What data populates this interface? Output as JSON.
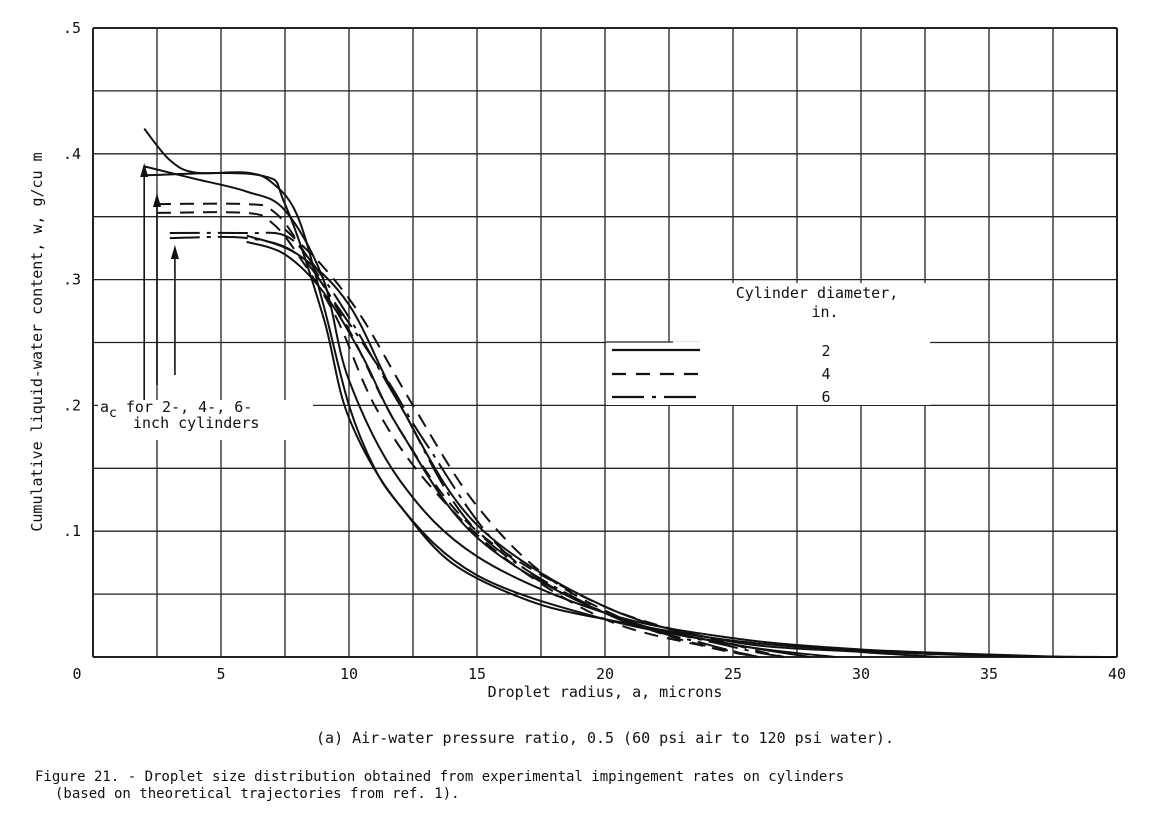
{
  "chart_data": {
    "type": "line",
    "xlabel": "Droplet radius, a, microns",
    "ylabel": "Cumulative liquid-water content, w, g/cu m",
    "xlim": [
      0,
      40
    ],
    "ylim": [
      0,
      0.5
    ],
    "x_ticks": [
      "0",
      "5",
      "10",
      "15",
      "20",
      "25",
      "30",
      "35",
      "40"
    ],
    "y_ticks": [
      ".1",
      ".2",
      ".3",
      ".4",
      ".5"
    ],
    "grid": true,
    "legend": {
      "title_line1": "Cylinder diameter,",
      "title_line2": "in.",
      "placement": "center-right",
      "entries": [
        {
          "label": "2",
          "style": "solid"
        },
        {
          "label": "4",
          "style": "dashed"
        },
        {
          "label": "6",
          "style": "dash-dot"
        }
      ]
    },
    "annotation": {
      "line1_prefix": "a",
      "line1_sub": "c",
      "line1_rest": " for 2-, 4-, 6-",
      "line2": "inch cylinders",
      "arrow_x": [
        2,
        2.5,
        3.2
      ]
    },
    "series": [
      {
        "style": "solid",
        "points": [
          [
            2,
            0.42
          ],
          [
            3,
            0.395
          ],
          [
            4,
            0.385
          ],
          [
            6,
            0.385
          ],
          [
            7,
            0.377
          ],
          [
            8,
            0.35
          ],
          [
            9,
            0.28
          ],
          [
            10,
            0.2
          ],
          [
            11,
            0.15
          ],
          [
            12,
            0.12
          ],
          [
            14,
            0.075
          ],
          [
            17,
            0.045
          ],
          [
            20,
            0.03
          ],
          [
            25,
            0.013
          ],
          [
            30,
            0.005
          ],
          [
            35,
            0.001
          ],
          [
            40,
            0
          ]
        ]
      },
      {
        "style": "solid",
        "points": [
          [
            2,
            0.39
          ],
          [
            4,
            0.38
          ],
          [
            6,
            0.37
          ],
          [
            7.5,
            0.355
          ],
          [
            9,
            0.3
          ],
          [
            10,
            0.22
          ],
          [
            12,
            0.14
          ],
          [
            15,
            0.08
          ],
          [
            20,
            0.035
          ],
          [
            25,
            0.015
          ],
          [
            30,
            0.006
          ],
          [
            35,
            0.002
          ],
          [
            38,
            0
          ]
        ]
      },
      {
        "style": "solid",
        "points": [
          [
            2,
            0.383
          ],
          [
            6.5,
            0.383
          ],
          [
            7.5,
            0.36
          ],
          [
            9,
            0.27
          ],
          [
            10,
            0.19
          ],
          [
            12,
            0.12
          ],
          [
            15,
            0.065
          ],
          [
            20,
            0.03
          ],
          [
            25,
            0.01
          ],
          [
            28,
            0
          ]
        ]
      },
      {
        "style": "solid",
        "points": [
          [
            6,
            0.335
          ],
          [
            8,
            0.32
          ],
          [
            10,
            0.28
          ],
          [
            12,
            0.2
          ],
          [
            15,
            0.105
          ],
          [
            20,
            0.04
          ],
          [
            25,
            0.012
          ],
          [
            30,
            0.004
          ],
          [
            33,
            0
          ]
        ]
      },
      {
        "style": "solid",
        "points": [
          [
            6,
            0.33
          ],
          [
            7.5,
            0.32
          ],
          [
            9,
            0.29
          ],
          [
            10.5,
            0.24
          ],
          [
            12,
            0.18
          ],
          [
            15,
            0.095
          ],
          [
            20,
            0.035
          ],
          [
            25,
            0.01
          ],
          [
            29,
            0
          ]
        ]
      },
      {
        "style": "dashed",
        "points": [
          [
            2.5,
            0.36
          ],
          [
            6,
            0.36
          ],
          [
            7,
            0.355
          ],
          [
            8,
            0.33
          ],
          [
            10,
            0.26
          ],
          [
            12,
            0.18
          ],
          [
            15,
            0.1
          ],
          [
            20,
            0.04
          ],
          [
            25,
            0.01
          ],
          [
            27,
            0
          ]
        ]
      },
      {
        "style": "dashed",
        "points": [
          [
            2.5,
            0.353
          ],
          [
            6,
            0.353
          ],
          [
            7,
            0.345
          ],
          [
            8,
            0.32
          ],
          [
            9.5,
            0.27
          ],
          [
            11,
            0.2
          ],
          [
            13,
            0.14
          ],
          [
            16,
            0.08
          ],
          [
            20,
            0.03
          ],
          [
            24,
            0.008
          ],
          [
            26,
            0
          ]
        ]
      },
      {
        "style": "dashed",
        "points": [
          [
            7.5,
            0.34
          ],
          [
            9,
            0.31
          ],
          [
            10.5,
            0.27
          ],
          [
            12.5,
            0.2
          ],
          [
            15,
            0.12
          ],
          [
            18,
            0.06
          ],
          [
            22,
            0.02
          ],
          [
            26,
            0
          ]
        ]
      },
      {
        "style": "dash-dot",
        "points": [
          [
            3,
            0.337
          ],
          [
            6,
            0.337
          ],
          [
            7.5,
            0.335
          ],
          [
            8.5,
            0.315
          ],
          [
            10,
            0.27
          ],
          [
            12,
            0.2
          ],
          [
            15,
            0.1
          ],
          [
            20,
            0.035
          ],
          [
            24,
            0.01
          ],
          [
            26,
            0
          ]
        ]
      },
      {
        "style": "dash-dot",
        "points": [
          [
            3,
            0.333
          ],
          [
            6,
            0.333
          ],
          [
            8,
            0.32
          ],
          [
            9.5,
            0.28
          ],
          [
            11.5,
            0.22
          ],
          [
            13,
            0.17
          ],
          [
            16,
            0.085
          ],
          [
            20,
            0.035
          ],
          [
            25,
            0.008
          ],
          [
            27,
            0
          ]
        ]
      }
    ]
  },
  "caption": {
    "subcaption": "(a) Air-water pressure ratio, 0.5 (60 psi air to 120 psi water).",
    "figure_line1": "Figure 21. - Droplet size distribution obtained from experimental impingement rates on cylinders",
    "figure_line2": "(based on theoretical trajectories from ref. 1)."
  }
}
